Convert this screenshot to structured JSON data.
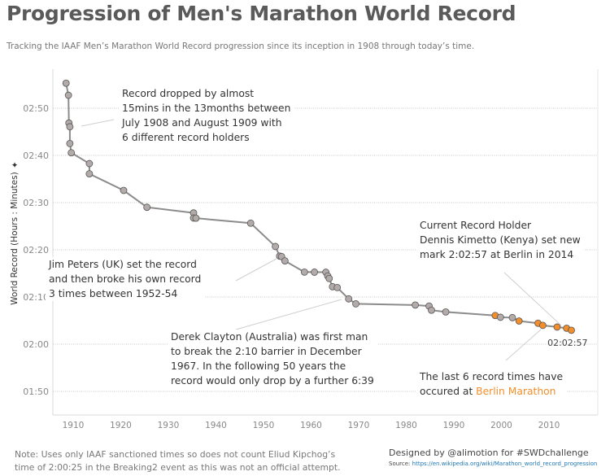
{
  "title": "Progression of Men's Marathon World Record",
  "subtitle": "Tracking the IAAF Men’s Marathon World Record progression since its inception in 1908 through today’s time.",
  "chart_data": {
    "type": "line",
    "ylabel": "World Record (Hours : Minutes)",
    "y_axis_icon": "pin-icon",
    "xlim": [
      1905,
      2019
    ],
    "ylim_minutes": [
      105,
      178
    ],
    "x_ticks": [
      "1910",
      "1920",
      "1930",
      "1940",
      "1950",
      "1960",
      "1970",
      "1980",
      "1990",
      "2000",
      "2010"
    ],
    "y_ticks": [
      "02:50",
      "02:40",
      "02:30",
      "02:20",
      "02:10",
      "02:00",
      "01:50"
    ],
    "grid": "horizontal dotted",
    "colors": {
      "default": "#b3abaa",
      "berlin": "#f28e2b",
      "line": "#8c8c8c"
    },
    "points": [
      {
        "x": 1908.5,
        "y": "2:55:18",
        "berlin": false
      },
      {
        "x": 1909.0,
        "y": "2:52:45",
        "berlin": false
      },
      {
        "x": 1909.1,
        "y": "2:46:52",
        "berlin": false
      },
      {
        "x": 1909.3,
        "y": "2:46:04",
        "berlin": false
      },
      {
        "x": 1909.3,
        "y": "2:42:31",
        "berlin": false
      },
      {
        "x": 1909.6,
        "y": "2:40:34",
        "berlin": false
      },
      {
        "x": 1913.4,
        "y": "2:38:16",
        "berlin": false
      },
      {
        "x": 1913.4,
        "y": "2:36:06",
        "berlin": false
      },
      {
        "x": 1920.6,
        "y": "2:32:35",
        "berlin": false
      },
      {
        "x": 1925.5,
        "y": "2:29:01",
        "berlin": false
      },
      {
        "x": 1935.3,
        "y": "2:27:49",
        "berlin": false
      },
      {
        "x": 1935.3,
        "y": "2:26:44",
        "berlin": false
      },
      {
        "x": 1935.8,
        "y": "2:26:42",
        "berlin": false
      },
      {
        "x": 1947.3,
        "y": "2:25:39",
        "berlin": false
      },
      {
        "x": 1952.5,
        "y": "2:20:42",
        "berlin": false
      },
      {
        "x": 1953.4,
        "y": "2:18:40",
        "berlin": false
      },
      {
        "x": 1953.8,
        "y": "2:18:34",
        "berlin": false
      },
      {
        "x": 1954.5,
        "y": "2:17:39",
        "berlin": false
      },
      {
        "x": 1958.6,
        "y": "2:15:17",
        "berlin": false
      },
      {
        "x": 1960.7,
        "y": "2:15:16",
        "berlin": false
      },
      {
        "x": 1963.1,
        "y": "2:15:15",
        "berlin": false
      },
      {
        "x": 1963.5,
        "y": "2:14:28",
        "berlin": false
      },
      {
        "x": 1963.8,
        "y": "2:13:55",
        "berlin": false
      },
      {
        "x": 1964.5,
        "y": "2:12:11",
        "berlin": false
      },
      {
        "x": 1965.5,
        "y": "2:12:00",
        "berlin": false
      },
      {
        "x": 1967.9,
        "y": "2:09:36",
        "berlin": false
      },
      {
        "x": 1969.4,
        "y": "2:08:33",
        "berlin": false
      },
      {
        "x": 1981.9,
        "y": "2:08:18",
        "berlin": false
      },
      {
        "x": 1984.8,
        "y": "2:08:05",
        "berlin": false
      },
      {
        "x": 1985.3,
        "y": "2:07:12",
        "berlin": false
      },
      {
        "x": 1988.3,
        "y": "2:06:50",
        "berlin": false
      },
      {
        "x": 1998.7,
        "y": "2:06:05",
        "berlin": true
      },
      {
        "x": 1999.8,
        "y": "2:05:42",
        "berlin": false
      },
      {
        "x": 2002.3,
        "y": "2:05:38",
        "berlin": false
      },
      {
        "x": 2003.7,
        "y": "2:04:55",
        "berlin": true
      },
      {
        "x": 2007.7,
        "y": "2:04:26",
        "berlin": true
      },
      {
        "x": 2008.7,
        "y": "2:03:59",
        "berlin": true
      },
      {
        "x": 2011.7,
        "y": "2:03:38",
        "berlin": true
      },
      {
        "x": 2013.7,
        "y": "2:03:23",
        "berlin": true
      },
      {
        "x": 2014.7,
        "y": "2:02:57",
        "berlin": true
      }
    ],
    "last_point_label": "02:02:57",
    "annotations": {
      "early": [
        "Record dropped by almost",
        "15mins in the 13months between",
        "July 1908 and August 1909 with",
        "6 different record holders"
      ],
      "peters": [
        "Jim Peters (UK) set the record",
        "and then broke his own record",
        "3 times between 1952-54"
      ],
      "clayton": [
        "Derek Clayton (Australia) was first man",
        "to break the 2:10 barrier in December",
        "1967. In the following 50 years the",
        "record would only drop by a further 6:39"
      ],
      "current": [
        "Current Record Holder",
        "Dennis Kimetto (Kenya) set new",
        "mark 2:02:57 at Berlin in 2014"
      ],
      "berlin_pre": "The last 6 record times have",
      "berlin_mid": "occured at ",
      "berlin_hl": "Berlin Marathon"
    }
  },
  "footer": {
    "note": [
      "Note: Uses only IAAF sanctioned times so does not count Eliud Kipchog’s",
      "time of 2:00:25 in the Breaking2 event as this was not an official attempt."
    ],
    "credit": "Designed by @alimotion for #SWDchallenge",
    "source_label": "Source: ",
    "source_url": "https://en.wikipedia.org/wiki/Marathon_world_record_progression"
  }
}
